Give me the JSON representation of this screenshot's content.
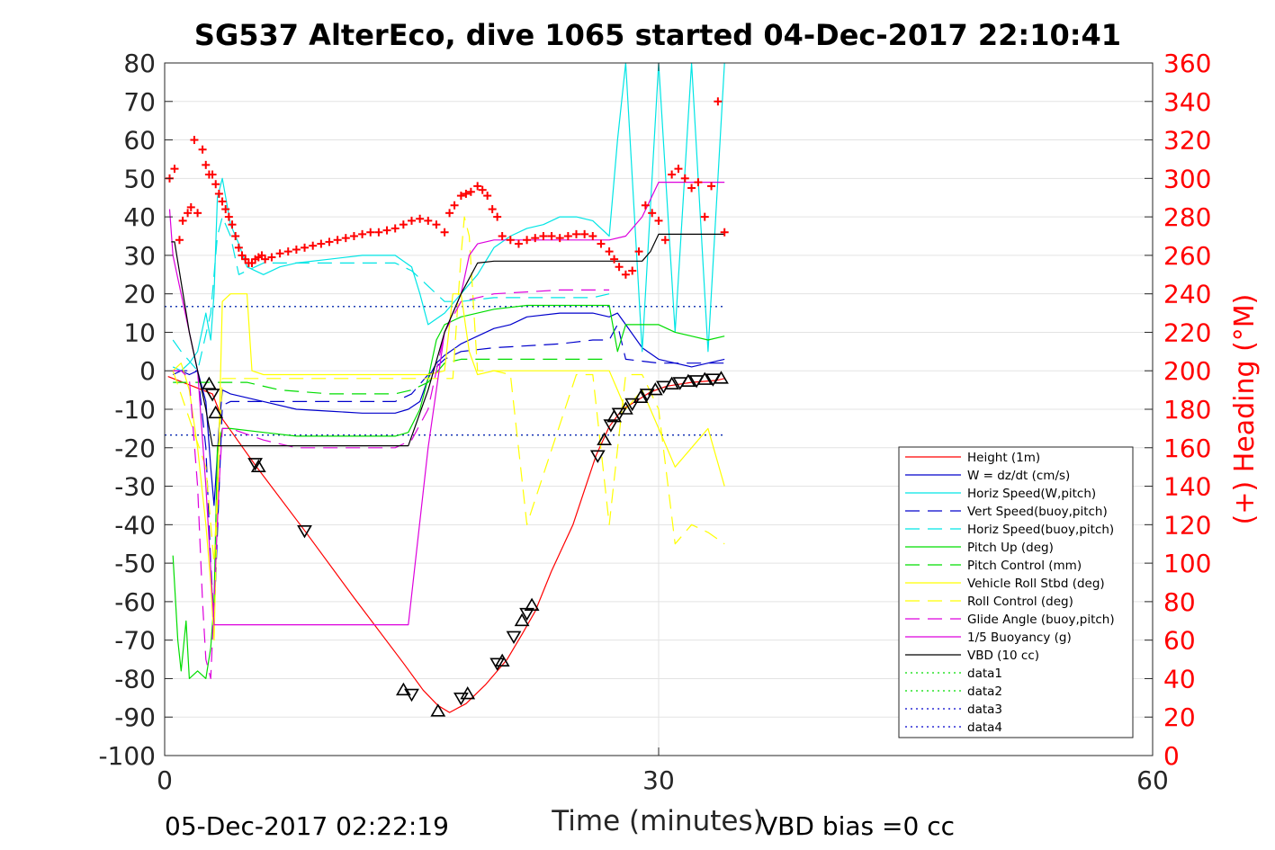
{
  "chart_data": {
    "type": "line",
    "title": "SG537 AlterEco, dive 1065 started 04-Dec-2017 22:10:41",
    "xlabel": "Time (minutes)",
    "ylabel_right": "(+) Heading (°M)",
    "footer_left": "05-Dec-2017 02:22:19",
    "footer_right": "VBD bias =0 cc",
    "xlim": [
      0,
      60
    ],
    "ylim": [
      -100,
      80
    ],
    "ylim_right": [
      0,
      360
    ],
    "xticks": [
      "0",
      "30",
      "60"
    ],
    "yticks": [
      "80",
      "70",
      "60",
      "50",
      "40",
      "30",
      "20",
      "10",
      "0",
      "-10",
      "-20",
      "-30",
      "-40",
      "-50",
      "-60",
      "-70",
      "-80",
      "-90",
      "-100"
    ],
    "yticks_right": [
      "360",
      "340",
      "320",
      "300",
      "280",
      "260",
      "240",
      "220",
      "200",
      "180",
      "160",
      "140",
      "120",
      "100",
      "80",
      "60",
      "40",
      "20",
      "0"
    ],
    "grid": true,
    "legend_position": "lower-right",
    "legend": [
      {
        "label": "Height (1m)",
        "color": "#ff0000",
        "style": "solid"
      },
      {
        "label": "W = dz/dt (cm/s)",
        "color": "#0000cc",
        "style": "solid"
      },
      {
        "label": "Horiz Speed(W,pitch)",
        "color": "#00e5e5",
        "style": "solid"
      },
      {
        "label": "Vert Speed(buoy,pitch)",
        "color": "#0000cc",
        "style": "dashed"
      },
      {
        "label": "Horiz Speed(buoy,pitch)",
        "color": "#00e5e5",
        "style": "dashed"
      },
      {
        "label": "Pitch Up (deg)",
        "color": "#00dd00",
        "style": "solid"
      },
      {
        "label": "Pitch Control (mm)",
        "color": "#00dd00",
        "style": "dashed"
      },
      {
        "label": "Vehicle Roll Stbd (deg)",
        "color": "#ffff00",
        "style": "solid"
      },
      {
        "label": "Roll Control (deg)",
        "color": "#ffff00",
        "style": "dashed"
      },
      {
        "label": "Glide Angle (buoy,pitch)",
        "color": "#dd00dd",
        "style": "dashed"
      },
      {
        "label": "1/5 Buoyancy (g)",
        "color": "#dd00dd",
        "style": "solid"
      },
      {
        "label": "VBD (10 cc)",
        "color": "#000000",
        "style": "solid"
      },
      {
        "label": "data1",
        "color": "#00dd00",
        "style": "dotted"
      },
      {
        "label": "data2",
        "color": "#00dd00",
        "style": "dotted"
      },
      {
        "label": "data3",
        "color": "#0000cc",
        "style": "dotted"
      },
      {
        "label": "data4",
        "color": "#0000cc",
        "style": "dotted"
      }
    ],
    "series": [
      {
        "name": "Height (1m)",
        "x": [
          0.2,
          2.9,
          3.5,
          5.5,
          8.5,
          11.5,
          14.5,
          15.7,
          16.6,
          17.3,
          18.3,
          19.5,
          20.8,
          21.7,
          22.5,
          23.5,
          24.8,
          25.5,
          26.2,
          27.0,
          27.8,
          28.6,
          29.5,
          30.5,
          32.0,
          33.5,
          34.0
        ],
        "y": [
          -1.5,
          -6.0,
          -12.5,
          -24.5,
          -41.5,
          -59.0,
          -76.0,
          -83.0,
          -87.0,
          -88.8,
          -86.5,
          -81.5,
          -75.0,
          -68.5,
          -62.5,
          -52.0,
          -40.0,
          -31.0,
          -22.0,
          -14.5,
          -10.0,
          -8.0,
          -5.5,
          -4.0,
          -3.0,
          -2.5,
          -2.0
        ]
      },
      {
        "name": "W = dz/dt (cm/s)",
        "x": [
          0.5,
          1.0,
          1.5,
          2.0,
          2.5,
          2.8,
          3.0,
          3.3,
          3.5,
          4.0,
          6.0,
          8.0,
          10.0,
          12.0,
          14.0,
          14.8,
          15.5,
          16.0,
          16.5,
          17.0,
          18.0,
          19.0,
          20.0,
          21.0,
          22.0,
          24.0,
          26.0,
          27.0,
          27.5,
          28.0,
          29.0,
          30.0,
          31.0,
          32.0,
          33.0,
          34.0
        ],
        "y": [
          -1,
          0,
          -1,
          0,
          -8,
          -25,
          -35,
          -15,
          -5,
          -6,
          -8,
          -10,
          -10.5,
          -11,
          -11,
          -10,
          -8,
          -2,
          2,
          4,
          7,
          9,
          11,
          12,
          14,
          15,
          15,
          14,
          15,
          12,
          6,
          3,
          2,
          1,
          2,
          3
        ]
      },
      {
        "name": "Horiz Speed(W,pitch)",
        "x": [
          0.5,
          1.0,
          1.5,
          2.0,
          2.5,
          2.8,
          3.0,
          3.2,
          3.5,
          4.0,
          4.5,
          5.0,
          6.0,
          7.0,
          8.0,
          10.0,
          12.0,
          14.0,
          15.0,
          15.5,
          16.0,
          17.0,
          18.0,
          19.0,
          20.0,
          21.0,
          22.0,
          23.0,
          24.0,
          25.0,
          26.0,
          27.0,
          27.5,
          28.0,
          29.0,
          30.0,
          31.0,
          32.0,
          33.0,
          34.0
        ],
        "y": [
          1,
          0,
          2,
          5,
          15,
          8,
          20,
          45,
          50,
          38,
          33,
          27,
          25,
          27,
          28,
          29,
          30,
          30,
          27,
          20,
          12,
          15,
          20,
          25,
          32,
          35,
          37,
          38,
          40,
          40,
          39,
          35,
          60,
          80,
          5,
          80,
          10,
          80,
          5,
          80
        ]
      },
      {
        "name": "Vert Speed(buoy,pitch)",
        "x": [
          0.5,
          2.0,
          2.5,
          2.8,
          3.0,
          3.5,
          4.0,
          6.0,
          10.0,
          14.0,
          15.0,
          16.0,
          17.0,
          18.0,
          20.0,
          24.0,
          26.0,
          27.0,
          27.5,
          28.0,
          30.0,
          34.0
        ],
        "y": [
          0,
          0,
          -20,
          -50,
          -65,
          -9,
          -8,
          -8,
          -8,
          -8,
          -6,
          -1,
          3,
          5,
          6,
          7,
          8,
          8,
          12,
          3,
          2,
          2
        ]
      },
      {
        "name": "Horiz Speed(buoy,pitch)",
        "x": [
          0.5,
          1.0,
          2.0,
          2.8,
          3.2,
          3.5,
          4.0,
          4.5,
          6.0,
          10.0,
          14.0,
          15.0,
          16.0,
          17.0,
          18.0,
          20.0,
          24.0,
          26.0,
          27.0
        ],
        "y": [
          8,
          5,
          0,
          15,
          35,
          40,
          35,
          25,
          28,
          28,
          28,
          26,
          22,
          18,
          18,
          19,
          19,
          19,
          20
        ]
      },
      {
        "name": "Pitch Up (deg)",
        "x": [
          0.5,
          0.8,
          1.0,
          1.3,
          1.5,
          2.0,
          2.5,
          2.8,
          3.0,
          3.2,
          3.5,
          4.0,
          6.0,
          8.0,
          10.0,
          12.0,
          14.0,
          14.8,
          15.5,
          16.0,
          16.5,
          17.0,
          18.0,
          19.0,
          20.0,
          22.0,
          24.0,
          26.0,
          27.0,
          27.5,
          28.0,
          29.0,
          30.0,
          31.0,
          32.0,
          33.0,
          34.0
        ],
        "y": [
          -48,
          -70,
          -78,
          -65,
          -80,
          -78,
          -80,
          -72,
          -60,
          -20,
          -15,
          -15,
          -16,
          -17,
          -17,
          -17,
          -17,
          -16,
          -10,
          -2,
          8,
          12,
          14,
          15,
          16,
          17,
          17,
          17,
          17,
          5,
          12,
          12,
          12,
          10,
          9,
          8,
          9
        ]
      },
      {
        "name": "Pitch Control (mm)",
        "x": [
          0.5,
          2.5,
          3.0,
          3.5,
          5.0,
          7.0,
          10.0,
          14.0,
          15.0,
          16.0,
          17.0,
          18.0,
          20.0,
          26.0,
          27.0
        ],
        "y": [
          -3,
          -3,
          -3,
          -3,
          -3,
          -5,
          -6,
          -6,
          -5,
          -3,
          2,
          3,
          3,
          3,
          3
        ]
      },
      {
        "name": "Vehicle Roll Stbd (deg)",
        "x": [
          0.5,
          1.0,
          1.5,
          2.0,
          2.5,
          2.8,
          3.0,
          3.5,
          4.0,
          5.0,
          5.3,
          6.0,
          10.0,
          14.0,
          15.0,
          16.0,
          17.0,
          17.5,
          18.0,
          18.5,
          19.0,
          20.0,
          22.0,
          24.0,
          26.0,
          27.0,
          27.5,
          28.0,
          29.0,
          30.0,
          31.0,
          32.0,
          33.0,
          34.0
        ],
        "y": [
          0,
          2,
          -5,
          -20,
          -40,
          -55,
          -70,
          18,
          20,
          20,
          0,
          -1,
          -1,
          -1,
          -1,
          -1,
          0,
          20,
          20,
          5,
          -1,
          0,
          0,
          0,
          0,
          0,
          -5,
          -10,
          -5,
          -15,
          -25,
          -20,
          -15,
          -30
        ]
      },
      {
        "name": "Roll Control (deg)",
        "x": [
          0.5,
          2.5,
          3.0,
          3.5,
          5.0,
          10.0,
          15.0,
          17.5,
          18.0,
          18.2,
          18.5,
          19.0,
          20.0,
          21.0,
          22.0,
          25.0,
          26.0,
          27.0,
          28.0,
          29.0,
          30.0,
          31.0,
          32.0,
          33.0,
          34.0
        ],
        "y": [
          0,
          -25,
          -50,
          -2,
          -2,
          -2,
          -2,
          -2,
          30,
          40,
          35,
          0,
          0,
          -1,
          -40,
          -1,
          -1,
          -40,
          -1,
          -1,
          -10,
          -45,
          -40,
          -42,
          -45
        ]
      },
      {
        "name": "Glide Angle (buoy,pitch)",
        "x": [
          0.5,
          1.0,
          1.5,
          2.0,
          2.3,
          2.5,
          2.8,
          3.0,
          3.3,
          3.5,
          4.0,
          6.0,
          8.0,
          10.0,
          12.0,
          14.0,
          15.0,
          16.0,
          17.0,
          18.0,
          20.0,
          24.0,
          26.0,
          27.0
        ],
        "y": [
          0,
          0,
          -2,
          -30,
          -60,
          -75,
          -80,
          -60,
          -30,
          -15,
          -15,
          -18,
          -20,
          -20,
          -20,
          -20,
          -18,
          -10,
          10,
          18,
          20,
          21,
          21,
          21
        ]
      },
      {
        "name": "1/5 Buoyancy (g)",
        "x": [
          0.3,
          0.5,
          1.0,
          1.5,
          2.0,
          2.5,
          3.0,
          3.5,
          6.0,
          10.0,
          14.0,
          14.8,
          16.0,
          17.0,
          18.0,
          18.5,
          19.0,
          20.0,
          22.0,
          25.0,
          27.0,
          28.0,
          29.0,
          30.0,
          31.0,
          34.0
        ],
        "y": [
          42,
          30,
          20,
          10,
          0,
          -30,
          -66,
          -66,
          -66,
          -66,
          -66,
          -66,
          -20,
          10,
          20,
          30,
          33,
          34,
          34,
          34,
          34,
          35,
          40,
          49,
          49,
          49
        ]
      },
      {
        "name": "VBD (10 cc)",
        "x": [
          0.4,
          0.6,
          1.5,
          2.5,
          2.9,
          3.0,
          6.0,
          10.0,
          14.0,
          14.8,
          16.0,
          17.0,
          18.0,
          19.0,
          20.0,
          22.0,
          25.0,
          27.0,
          28.0,
          29.0,
          29.5,
          30.0,
          31.0,
          34.0
        ],
        "y": [
          33.5,
          33.5,
          10,
          -10,
          -19.5,
          -19.5,
          -19.5,
          -19.5,
          -19.5,
          -19.5,
          -5,
          10,
          20,
          28,
          28.5,
          28.5,
          28.5,
          28.5,
          28.5,
          28.5,
          31,
          35.5,
          35.5,
          35.5
        ]
      },
      {
        "name": "data1",
        "x": [
          0,
          34
        ],
        "y": [
          16.7,
          16.7
        ]
      },
      {
        "name": "data2",
        "x": [
          0,
          34
        ],
        "y": [
          -16.7,
          -16.7
        ]
      },
      {
        "name": "data3",
        "x": [
          0,
          34
        ],
        "y": [
          16.7,
          16.7
        ]
      },
      {
        "name": "data4",
        "x": [
          0,
          34
        ],
        "y": [
          -16.7,
          -16.7
        ]
      }
    ],
    "heading_points": {
      "axis": "right",
      "x": [
        0.3,
        0.6,
        0.9,
        1.1,
        1.4,
        1.6,
        1.8,
        2.0,
        2.3,
        2.5,
        2.7,
        2.9,
        3.1,
        3.3,
        3.5,
        3.7,
        3.9,
        4.1,
        4.3,
        4.5,
        4.7,
        4.9,
        5.1,
        5.3,
        5.5,
        5.7,
        5.9,
        6.1,
        6.5,
        7.0,
        7.5,
        8.0,
        8.5,
        9.0,
        9.5,
        10.0,
        10.5,
        11.0,
        11.5,
        12.0,
        12.5,
        13.0,
        13.5,
        14.0,
        14.5,
        15.0,
        15.5,
        16.0,
        16.5,
        17.0,
        17.3,
        17.6,
        18.0,
        18.3,
        18.6,
        19.0,
        19.3,
        19.6,
        19.9,
        20.2,
        20.5,
        21.0,
        21.5,
        22.0,
        22.5,
        23.0,
        23.5,
        24.0,
        24.5,
        25.0,
        25.5,
        26.0,
        26.5,
        27.0,
        27.3,
        27.6,
        28.0,
        28.4,
        28.8,
        29.2,
        29.6,
        30.0,
        30.4,
        30.8,
        31.2,
        31.6,
        32.0,
        32.4,
        32.8,
        33.2,
        33.6,
        34.0
      ],
      "y": [
        300,
        305,
        268,
        278,
        282,
        285,
        320,
        282,
        315,
        307,
        302,
        302,
        297,
        292,
        288,
        284,
        280,
        276,
        270,
        264,
        260,
        258,
        256,
        256,
        258,
        259,
        260,
        258,
        259,
        261,
        262,
        263,
        264,
        265,
        266,
        267,
        268,
        269,
        270,
        271,
        272,
        272,
        273,
        274,
        276,
        278,
        279,
        278,
        276,
        272,
        282,
        286,
        291,
        292,
        293,
        296,
        294,
        291,
        284,
        280,
        270,
        268,
        266,
        268,
        269,
        270,
        270,
        269,
        270,
        271,
        271,
        270,
        266,
        262,
        258,
        254,
        250,
        252,
        262,
        286,
        282,
        278,
        268,
        302,
        305,
        300,
        295,
        298,
        280,
        296,
        340,
        272
      ]
    },
    "triangle_markers": {
      "x": [
        2.7,
        2.9,
        3.1,
        5.5,
        5.7,
        8.5,
        14.5,
        15.0,
        16.6,
        18.0,
        18.4,
        20.2,
        20.5,
        21.2,
        21.7,
        22.0,
        22.3,
        26.3,
        26.7,
        27.1,
        27.3,
        27.6,
        28.0,
        28.4,
        28.9,
        29.3,
        29.8,
        30.3,
        30.8,
        31.3,
        31.8,
        32.3,
        32.8,
        33.3,
        33.8
      ],
      "y": [
        -3.5,
        -6.0,
        -11.0,
        -24.0,
        -25.0,
        -41.5,
        -83.0,
        -84.0,
        -88.5,
        -85.0,
        -84.0,
        -76.0,
        -75.5,
        -69.0,
        -65.0,
        -63.0,
        -61.0,
        -22.0,
        -18.0,
        -14.0,
        -12.0,
        -11.0,
        -10.0,
        -8.5,
        -7.0,
        -6.0,
        -5.0,
        -4.0,
        -3.5,
        -3.0,
        -2.8,
        -2.5,
        -2.3,
        -2.1,
        -2.0
      ]
    }
  }
}
